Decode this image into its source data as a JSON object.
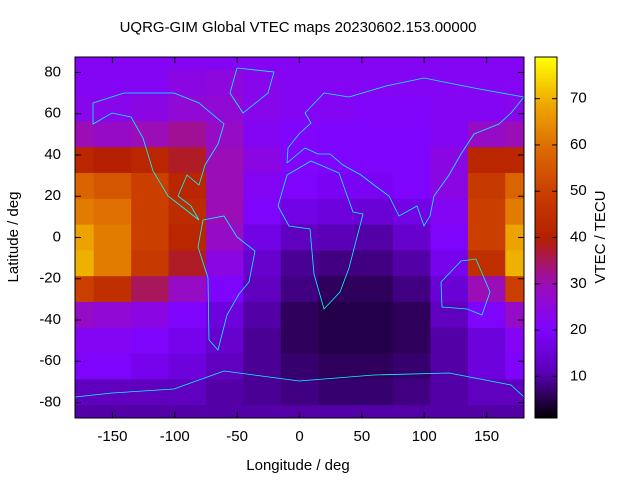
{
  "chart_data": {
    "type": "heatmap",
    "title": "UQRG-GIM Global VTEC maps 20230602.153.00000",
    "x_label": "Longitude / deg",
    "y_label": "Latitude / deg",
    "colorbar_label": "VTEC / TECU",
    "x": [
      -180,
      -150,
      -120,
      -90,
      -60,
      -30,
      0,
      30,
      60,
      90,
      120,
      150,
      180
    ],
    "y": [
      87.5,
      75,
      62.5,
      50,
      37.5,
      25,
      12.5,
      0,
      -12.5,
      -25,
      -37.5,
      -50,
      -62.5,
      -75,
      -87.5
    ],
    "cell_size": [
      30,
      12.5
    ],
    "values": [
      [
        22,
        22,
        22,
        22,
        22,
        22,
        22,
        22,
        22,
        22,
        22,
        22,
        22
      ],
      [
        22,
        22,
        22,
        24,
        25,
        23,
        22,
        22,
        22,
        22,
        22,
        22,
        22
      ],
      [
        23,
        23,
        24,
        26,
        26,
        23,
        22,
        22,
        21,
        21,
        22,
        22,
        23
      ],
      [
        30,
        28,
        30,
        32,
        28,
        22,
        21,
        20,
        20,
        20,
        22,
        28,
        30
      ],
      [
        42,
        40,
        42,
        38,
        30,
        24,
        21,
        20,
        20,
        20,
        24,
        42,
        42
      ],
      [
        58,
        55,
        50,
        42,
        30,
        22,
        20,
        19,
        19,
        20,
        24,
        48,
        58
      ],
      [
        62,
        60,
        50,
        44,
        30,
        20,
        17,
        16,
        15,
        17,
        22,
        50,
        62
      ],
      [
        68,
        62,
        50,
        42,
        28,
        17,
        12,
        11,
        10,
        14,
        20,
        50,
        68
      ],
      [
        70,
        62,
        48,
        38,
        24,
        14,
        9,
        8,
        8,
        10,
        18,
        45,
        70
      ],
      [
        50,
        45,
        35,
        28,
        20,
        12,
        8,
        6,
        6,
        8,
        15,
        30,
        50
      ],
      [
        28,
        26,
        24,
        20,
        16,
        10,
        6,
        5,
        5,
        6,
        12,
        20,
        28
      ],
      [
        22,
        22,
        20,
        18,
        14,
        9,
        6,
        5,
        5,
        6,
        10,
        16,
        22
      ],
      [
        20,
        20,
        18,
        16,
        12,
        9,
        7,
        6,
        6,
        7,
        10,
        16,
        20
      ],
      [
        12,
        12,
        12,
        12,
        10,
        9,
        8,
        7,
        7,
        8,
        10,
        12,
        12
      ],
      [
        10,
        10,
        10,
        10,
        10,
        10,
        10,
        10,
        10,
        10,
        10,
        10,
        10
      ]
    ],
    "xlim": [
      -180,
      180
    ],
    "ylim": [
      -87.5,
      87.5
    ],
    "xticks": [
      -150,
      -100,
      -50,
      0,
      50,
      100,
      150
    ],
    "yticks": [
      -80,
      -60,
      -40,
      -20,
      0,
      20,
      40,
      60,
      80
    ],
    "clim": [
      1,
      79
    ],
    "cticks": [
      10,
      20,
      30,
      40,
      50,
      60,
      70
    ],
    "colormap": [
      "#000000",
      "#5a00b4",
      "#8004ff",
      "#9c0db4",
      "#b42000",
      "#ca3e00",
      "#dd6c00",
      "#eeab00",
      "#ffff00"
    ],
    "coastline_color": "#00ffff"
  }
}
